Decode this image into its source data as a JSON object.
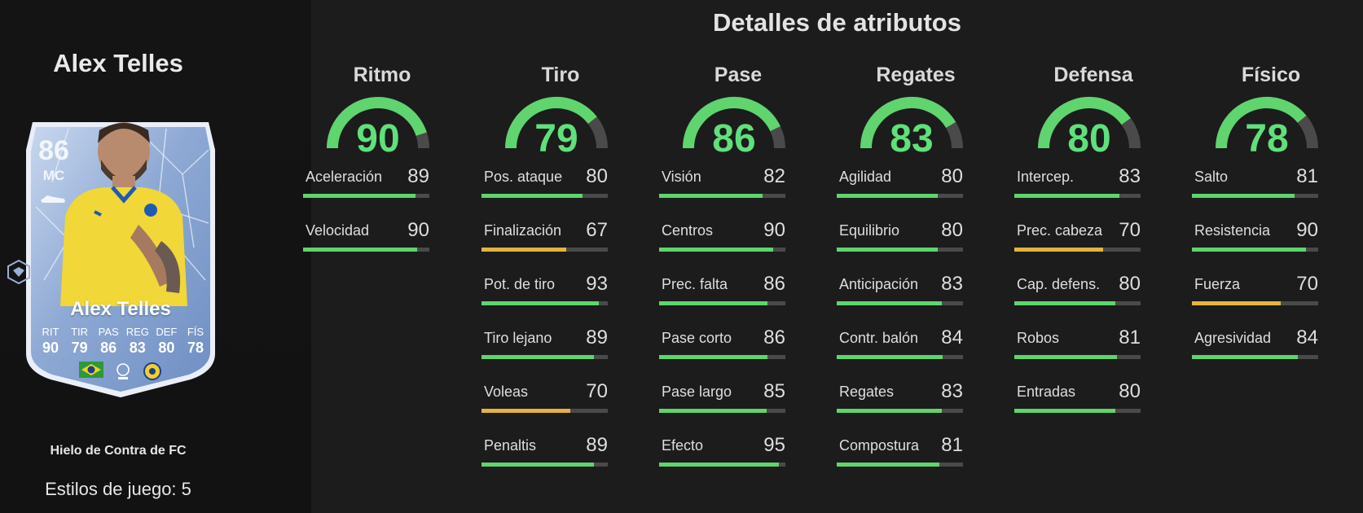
{
  "player": {
    "name": "Alex Telles",
    "promo": "Hielo de Contra de FC",
    "playstyles_label": "Estilos de juego: 5"
  },
  "card": {
    "rating": "86",
    "position": "MC",
    "name": "Alex Telles",
    "stats": [
      {
        "label": "RIT",
        "value": "90"
      },
      {
        "label": "TIR",
        "value": "79"
      },
      {
        "label": "PAS",
        "value": "86"
      },
      {
        "label": "REG",
        "value": "83"
      },
      {
        "label": "DEF",
        "value": "80"
      },
      {
        "label": "FÍS",
        "value": "78"
      }
    ],
    "badges": [
      "brazil-flag-icon",
      "league-logo-icon",
      "club-crest-icon"
    ]
  },
  "section_title": "Detalles de atributos",
  "colors": {
    "high": "#5fd46f",
    "mid": "#e4b43f",
    "track": "#4a4a4a",
    "gauge_text": "#5fe07b"
  },
  "categories": [
    {
      "name": "Ritmo",
      "value": 90,
      "stats": [
        {
          "label": "Aceleración",
          "value": 89
        },
        {
          "label": "Velocidad",
          "value": 90
        }
      ]
    },
    {
      "name": "Tiro",
      "value": 79,
      "stats": [
        {
          "label": "Pos. ataque",
          "value": 80
        },
        {
          "label": "Finalización",
          "value": 67
        },
        {
          "label": "Pot. de tiro",
          "value": 93
        },
        {
          "label": "Tiro lejano",
          "value": 89
        },
        {
          "label": "Voleas",
          "value": 70
        },
        {
          "label": "Penaltis",
          "value": 89
        }
      ]
    },
    {
      "name": "Pase",
      "value": 86,
      "stats": [
        {
          "label": "Visión",
          "value": 82
        },
        {
          "label": "Centros",
          "value": 90
        },
        {
          "label": "Prec. falta",
          "value": 86
        },
        {
          "label": "Pase corto",
          "value": 86
        },
        {
          "label": "Pase largo",
          "value": 85
        },
        {
          "label": "Efecto",
          "value": 95
        }
      ]
    },
    {
      "name": "Regates",
      "value": 83,
      "stats": [
        {
          "label": "Agilidad",
          "value": 80
        },
        {
          "label": "Equilibrio",
          "value": 80
        },
        {
          "label": "Anticipación",
          "value": 83
        },
        {
          "label": "Contr. balón",
          "value": 84
        },
        {
          "label": "Regates",
          "value": 83
        },
        {
          "label": "Compostura",
          "value": 81
        }
      ]
    },
    {
      "name": "Defensa",
      "value": 80,
      "stats": [
        {
          "label": "Intercep.",
          "value": 83
        },
        {
          "label": "Prec. cabeza",
          "value": 70
        },
        {
          "label": "Cap. defens.",
          "value": 80
        },
        {
          "label": "Robos",
          "value": 81
        },
        {
          "label": "Entradas",
          "value": 80
        }
      ]
    },
    {
      "name": "Físico",
      "value": 78,
      "stats": [
        {
          "label": "Salto",
          "value": 81
        },
        {
          "label": "Resistencia",
          "value": 90
        },
        {
          "label": "Fuerza",
          "value": 70
        },
        {
          "label": "Agresividad",
          "value": 84
        }
      ]
    }
  ]
}
